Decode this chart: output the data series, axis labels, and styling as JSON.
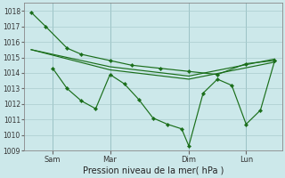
{
  "background_color": "#cce8ea",
  "grid_color": "#aaccce",
  "line_color": "#1a6e1a",
  "marker_color": "#1a6e1a",
  "xlabel": "Pression niveau de la mer( hPa )",
  "ylim": [
    1009,
    1018.5
  ],
  "yticks": [
    1009,
    1010,
    1011,
    1012,
    1013,
    1014,
    1015,
    1016,
    1017,
    1018
  ],
  "xtick_labels": [
    "Sam",
    "Mar",
    "Dim",
    "Lun"
  ],
  "xtick_positions": [
    12,
    44,
    88,
    120
  ],
  "vline_x": [
    12,
    44,
    88,
    120
  ],
  "series1_x": [
    0,
    8,
    20,
    28,
    44,
    56,
    72,
    88,
    104,
    120,
    136
  ],
  "series1_y": [
    1017.9,
    1017.0,
    1015.6,
    1015.2,
    1014.8,
    1014.5,
    1014.3,
    1014.1,
    1013.9,
    1014.6,
    1014.8
  ],
  "series2_x": [
    0,
    44,
    88,
    136
  ],
  "series2_y": [
    1015.5,
    1014.4,
    1013.8,
    1014.9
  ],
  "series3_x": [
    0,
    44,
    88,
    136
  ],
  "series3_y": [
    1015.5,
    1014.2,
    1013.6,
    1014.7
  ],
  "series4_x": [
    12,
    20,
    28,
    36,
    44,
    52,
    60,
    68,
    76,
    84,
    88,
    96,
    104,
    112,
    120,
    128,
    136
  ],
  "series4_y": [
    1014.3,
    1013.0,
    1012.2,
    1011.7,
    1013.9,
    1013.3,
    1012.3,
    1011.1,
    1010.7,
    1010.4,
    1009.3,
    1012.7,
    1013.6,
    1013.2,
    1010.7,
    1011.6,
    1014.8
  ],
  "title_fontsize": 6.5,
  "tick_fontsize": 5.5,
  "xlabel_fontsize": 7.0
}
